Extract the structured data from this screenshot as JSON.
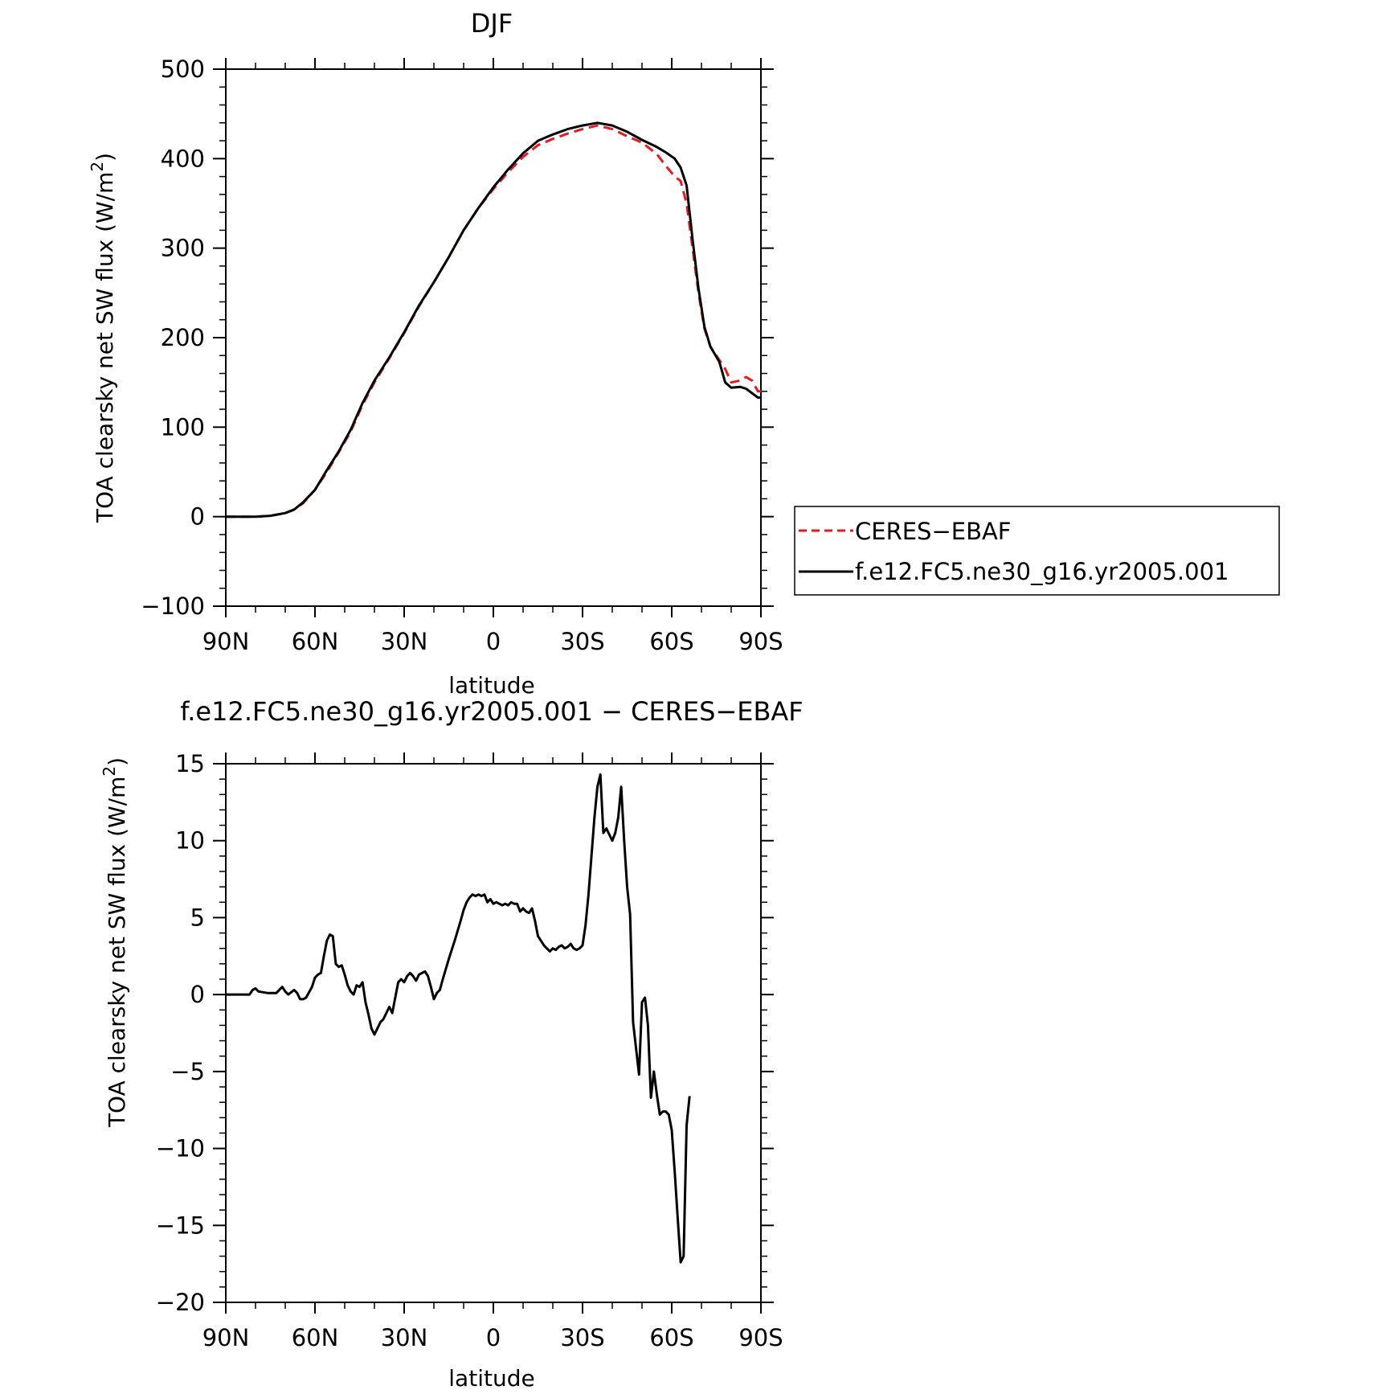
{
  "chart_data": [
    {
      "type": "line",
      "title": "DJF",
      "xlabel": "latitude",
      "ylabel": "TOA clearsky net SW flux (W/m",
      "ylabel_sup": "2",
      "ylabel_tail": ")",
      "x_range": [
        -90,
        90
      ],
      "x_ticks": [
        -90,
        -60,
        -30,
        0,
        30,
        60,
        90
      ],
      "x_tick_labels": [
        "90N",
        "60N",
        "30N",
        "0",
        "30S",
        "60S",
        "90S"
      ],
      "ylim": [
        -100,
        500
      ],
      "y_ticks": [
        -100,
        0,
        100,
        200,
        300,
        400,
        500
      ],
      "y_tick_labels": [
        "−100",
        "0",
        "100",
        "200",
        "300",
        "400",
        "500"
      ],
      "legend": "right",
      "series": [
        {
          "name": "CERES−EBAF",
          "color": "#e8191f",
          "dash": "dashed",
          "points": [
            [
              -90,
              0
            ],
            [
              -85,
              0
            ],
            [
              -80,
              0
            ],
            [
              -75,
              1
            ],
            [
              -70,
              4
            ],
            [
              -67,
              8
            ],
            [
              -64,
              15
            ],
            [
              -60,
              30
            ],
            [
              -56,
              50
            ],
            [
              -52,
              72
            ],
            [
              -48,
              95
            ],
            [
              -44,
              125
            ],
            [
              -40,
              150
            ],
            [
              -35,
              177
            ],
            [
              -30,
              205
            ],
            [
              -25,
              235
            ],
            [
              -20,
              262
            ],
            [
              -15,
              290
            ],
            [
              -10,
              320
            ],
            [
              -5,
              345
            ],
            [
              0,
              366
            ],
            [
              5,
              385
            ],
            [
              10,
              402
            ],
            [
              15,
              415
            ],
            [
              20,
              422
            ],
            [
              25,
              428
            ],
            [
              30,
              433
            ],
            [
              35,
              437
            ],
            [
              40,
              433
            ],
            [
              45,
              425
            ],
            [
              50,
              418
            ],
            [
              55,
              405
            ],
            [
              58,
              392
            ],
            [
              61,
              380
            ],
            [
              63,
              375
            ],
            [
              65,
              350
            ],
            [
              67,
              300
            ],
            [
              69,
              250
            ],
            [
              71,
              210
            ],
            [
              73,
              190
            ],
            [
              76,
              175
            ],
            [
              78,
              165
            ],
            [
              80,
              150
            ],
            [
              83,
              152
            ],
            [
              85,
              156
            ],
            [
              87,
              152
            ],
            [
              89,
              140
            ],
            [
              90,
              140
            ]
          ]
        },
        {
          "name": "f.e12.FC5.ne30_g16.yr2005.001",
          "color": "#000000",
          "dash": "solid",
          "points": [
            [
              -90,
              0
            ],
            [
              -85,
              0
            ],
            [
              -80,
              0
            ],
            [
              -75,
              1
            ],
            [
              -70,
              4
            ],
            [
              -67,
              8
            ],
            [
              -64,
              16
            ],
            [
              -60,
              30
            ],
            [
              -56,
              52
            ],
            [
              -52,
              73
            ],
            [
              -48,
              97
            ],
            [
              -44,
              127
            ],
            [
              -40,
              152
            ],
            [
              -35,
              178
            ],
            [
              -30,
              206
            ],
            [
              -25,
              236
            ],
            [
              -20,
              262
            ],
            [
              -15,
              290
            ],
            [
              -10,
              320
            ],
            [
              -5,
              345
            ],
            [
              0,
              368
            ],
            [
              5,
              388
            ],
            [
              10,
              406
            ],
            [
              15,
              420
            ],
            [
              20,
              427
            ],
            [
              25,
              433
            ],
            [
              30,
              437
            ],
            [
              35,
              440
            ],
            [
              40,
              437
            ],
            [
              45,
              430
            ],
            [
              50,
              421
            ],
            [
              55,
              413
            ],
            [
              58,
              407
            ],
            [
              61,
              400
            ],
            [
              63,
              390
            ],
            [
              65,
              370
            ],
            [
              67,
              310
            ],
            [
              69,
              255
            ],
            [
              71,
              212
            ],
            [
              73,
              190
            ],
            [
              76,
              173
            ],
            [
              78,
              150
            ],
            [
              80,
              144
            ],
            [
              83,
              145
            ],
            [
              85,
              143
            ],
            [
              87,
              138
            ],
            [
              89,
              133
            ],
            [
              90,
              133
            ]
          ]
        }
      ]
    },
    {
      "type": "line",
      "title": "f.e12.FC5.ne30_g16.yr2005.001 − CERES−EBAF",
      "xlabel": "latitude",
      "ylabel": "TOA clearsky net SW flux (W/m",
      "ylabel_sup": "2",
      "ylabel_tail": ")",
      "x_range": [
        -90,
        90
      ],
      "x_ticks": [
        -90,
        -60,
        -30,
        0,
        30,
        60,
        90
      ],
      "x_tick_labels": [
        "90N",
        "60N",
        "30N",
        "0",
        "30S",
        "60S",
        "90S"
      ],
      "ylim": [
        -20,
        15
      ],
      "y_ticks": [
        -20,
        -15,
        -10,
        -5,
        0,
        5,
        10,
        15
      ],
      "y_tick_labels": [
        "−20",
        "−15",
        "−10",
        "−5",
        "0",
        "5",
        "10",
        "15"
      ],
      "series": [
        {
          "color": "#000000",
          "dash": "solid",
          "points": [
            [
              -90,
              0
            ],
            [
              -82,
              0
            ],
            [
              -81,
              0.3
            ],
            [
              -80,
              0.4
            ],
            [
              -79,
              0.2
            ],
            [
              -76,
              0.1
            ],
            [
              -73,
              0.1
            ],
            [
              -71,
              0.5
            ],
            [
              -70,
              0.2
            ],
            [
              -69,
              0
            ],
            [
              -67,
              0.3
            ],
            [
              -66,
              0.1
            ],
            [
              -65,
              -0.3
            ],
            [
              -64,
              -0.3
            ],
            [
              -63,
              -0.2
            ],
            [
              -61,
              0.5
            ],
            [
              -60,
              1.1
            ],
            [
              -59,
              1.3
            ],
            [
              -58,
              1.4
            ],
            [
              -57,
              2.5
            ],
            [
              -56,
              3.5
            ],
            [
              -55,
              3.9
            ],
            [
              -54,
              3.8
            ],
            [
              -53,
              2.0
            ],
            [
              -52,
              1.8
            ],
            [
              -51,
              1.9
            ],
            [
              -50,
              1.3
            ],
            [
              -49,
              0.6
            ],
            [
              -48,
              0.2
            ],
            [
              -47,
              0
            ],
            [
              -46,
              0.6
            ],
            [
              -45,
              0.5
            ],
            [
              -44,
              0.8
            ],
            [
              -43,
              -0.5
            ],
            [
              -42,
              -1.3
            ],
            [
              -41,
              -2.2
            ],
            [
              -40,
              -2.6
            ],
            [
              -39,
              -2.2
            ],
            [
              -38,
              -1.8
            ],
            [
              -37,
              -1.6
            ],
            [
              -36,
              -1.2
            ],
            [
              -35,
              -0.8
            ],
            [
              -34,
              -1.2
            ],
            [
              -33,
              -0.2
            ],
            [
              -32,
              0.8
            ],
            [
              -31,
              1.0
            ],
            [
              -30,
              0.8
            ],
            [
              -29,
              1.2
            ],
            [
              -28,
              1.4
            ],
            [
              -27,
              1.2
            ],
            [
              -26,
              0.9
            ],
            [
              -25,
              1.3
            ],
            [
              -24,
              1.4
            ],
            [
              -23,
              1.5
            ],
            [
              -22,
              1.2
            ],
            [
              -21,
              0.5
            ],
            [
              -20,
              -0.3
            ],
            [
              -19,
              0.1
            ],
            [
              -18,
              0.3
            ],
            [
              -17,
              1.0
            ],
            [
              -15,
              2.3
            ],
            [
              -13,
              3.5
            ],
            [
              -11,
              4.8
            ],
            [
              -10,
              5.5
            ],
            [
              -9,
              6.0
            ],
            [
              -8,
              6.3
            ],
            [
              -7,
              6.5
            ],
            [
              -6,
              6.4
            ],
            [
              -5,
              6.5
            ],
            [
              -4,
              6.4
            ],
            [
              -3,
              6.5
            ],
            [
              -2,
              6.0
            ],
            [
              -1,
              6.2
            ],
            [
              0,
              5.9
            ],
            [
              1,
              6.0
            ],
            [
              2,
              5.9
            ],
            [
              3,
              5.8
            ],
            [
              4,
              5.9
            ],
            [
              5,
              5.8
            ],
            [
              6,
              6.0
            ],
            [
              7,
              5.9
            ],
            [
              8,
              5.9
            ],
            [
              9,
              5.4
            ],
            [
              10,
              5.6
            ],
            [
              11,
              5.4
            ],
            [
              12,
              5.3
            ],
            [
              13,
              5.6
            ],
            [
              14,
              4.8
            ],
            [
              15,
              3.8
            ],
            [
              16,
              3.5
            ],
            [
              17,
              3.2
            ],
            [
              18,
              3.0
            ],
            [
              19,
              2.8
            ],
            [
              20,
              3.0
            ],
            [
              21,
              2.9
            ],
            [
              22,
              3.1
            ],
            [
              23,
              3.2
            ],
            [
              24,
              3.0
            ],
            [
              25,
              3.1
            ],
            [
              26,
              3.3
            ],
            [
              27,
              3.0
            ],
            [
              28,
              2.9
            ],
            [
              29,
              3.0
            ],
            [
              30,
              3.2
            ],
            [
              31,
              4.5
            ],
            [
              32,
              6.5
            ],
            [
              33,
              9.0
            ],
            [
              34,
              11.5
            ],
            [
              35,
              13.5
            ],
            [
              36,
              14.3
            ],
            [
              37,
              10.5
            ],
            [
              38,
              10.8
            ],
            [
              39,
              10.4
            ],
            [
              40,
              10.0
            ],
            [
              41,
              10.5
            ],
            [
              42,
              11.5
            ],
            [
              43,
              13.5
            ],
            [
              44,
              10.0
            ],
            [
              45,
              7.0
            ],
            [
              46,
              5.2
            ],
            [
              47,
              -1.8
            ],
            [
              48,
              -3.5
            ],
            [
              49,
              -5.2
            ],
            [
              50,
              -0.5
            ],
            [
              51,
              -0.2
            ],
            [
              52,
              -2.0
            ],
            [
              53,
              -6.7
            ],
            [
              54,
              -5.0
            ],
            [
              55,
              -6.5
            ],
            [
              56,
              -7.8
            ],
            [
              57,
              -7.6
            ],
            [
              58,
              -7.6
            ],
            [
              59,
              -7.8
            ],
            [
              60,
              -8.8
            ],
            [
              61,
              -11.5
            ],
            [
              62,
              -14.5
            ],
            [
              63,
              -17.4
            ],
            [
              64,
              -17.0
            ],
            [
              65,
              -8.5
            ],
            [
              66,
              -6.6
            ]
          ],
          "x_note": "shifted"
        }
      ]
    }
  ],
  "legend_box": {
    "entries": [
      "CERES−EBAF",
      "f.e12.FC5.ne30_g16.yr2005.001"
    ]
  }
}
